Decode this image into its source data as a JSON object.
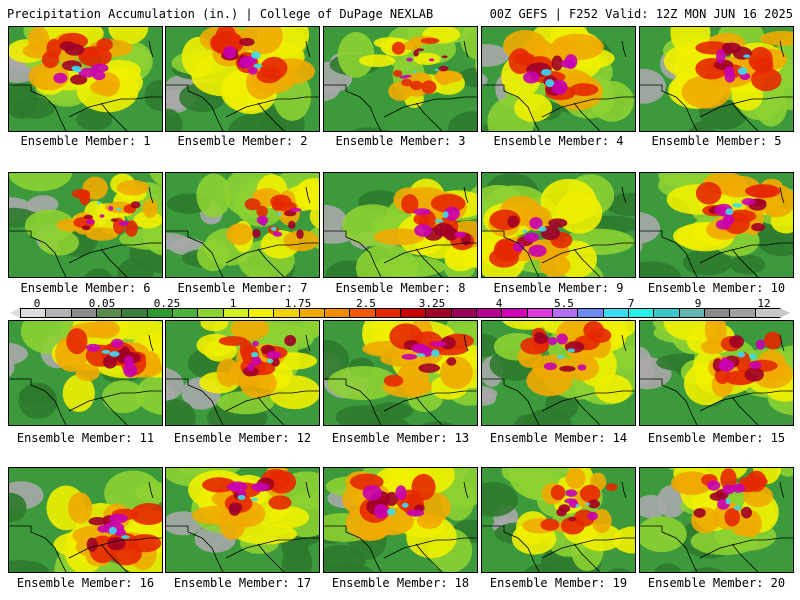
{
  "header": {
    "left": "Precipitation Accumulation (in.) | College of DuPage NEXLAB",
    "right": "00Z GEFS | F252 Valid: 12Z MON JUN 16 2025"
  },
  "caption_prefix": "Ensemble Member:",
  "members": [
    {
      "n": "1",
      "intensity": 0.75,
      "center": "north-central"
    },
    {
      "n": "2",
      "intensity": 0.8,
      "center": "north"
    },
    {
      "n": "3",
      "intensity": 0.35,
      "center": "north-east"
    },
    {
      "n": "4",
      "intensity": 0.9,
      "center": "widespread"
    },
    {
      "n": "5",
      "intensity": 0.8,
      "center": "north-east"
    },
    {
      "n": "6",
      "intensity": 0.45,
      "center": "north-east"
    },
    {
      "n": "7",
      "intensity": 0.5,
      "center": "east"
    },
    {
      "n": "8",
      "intensity": 0.8,
      "center": "east"
    },
    {
      "n": "9",
      "intensity": 0.75,
      "center": "south-central"
    },
    {
      "n": "10",
      "intensity": 0.75,
      "center": "north-east"
    },
    {
      "n": "11",
      "intensity": 0.8,
      "center": "north-east"
    },
    {
      "n": "12",
      "intensity": 0.6,
      "center": "north-east"
    },
    {
      "n": "13",
      "intensity": 0.8,
      "center": "north-east"
    },
    {
      "n": "14",
      "intensity": 0.7,
      "center": "north"
    },
    {
      "n": "15",
      "intensity": 0.75,
      "center": "north-east"
    },
    {
      "n": "16",
      "intensity": 0.85,
      "center": "south-east"
    },
    {
      "n": "17",
      "intensity": 0.8,
      "center": "north"
    },
    {
      "n": "18",
      "intensity": 0.85,
      "center": "north-central"
    },
    {
      "n": "19",
      "intensity": 0.5,
      "center": "north-east"
    },
    {
      "n": "20",
      "intensity": 0.7,
      "center": "north"
    }
  ],
  "colorbar": {
    "colors": [
      "#dcdcdc",
      "#b4b4b4",
      "#8c8c8c",
      "#5a8c50",
      "#3c7c3c",
      "#2e9a2e",
      "#4cb43c",
      "#8cd232",
      "#d2f01e",
      "#f0f000",
      "#f0d200",
      "#f0aa00",
      "#f08c00",
      "#f05a00",
      "#e62800",
      "#c80000",
      "#a00028",
      "#96005a",
      "#b4008c",
      "#d200b4",
      "#dc3cdc",
      "#b46ef0",
      "#6e8cf0",
      "#3cdcf0",
      "#28f0e6",
      "#3cc8c8",
      "#64b4b4",
      "#8c8c8c",
      "#a0a0a0",
      "#c8c8c8"
    ],
    "labels": [
      "0",
      "0.05",
      "0.25",
      "1",
      "1.75",
      "2.5",
      "3.25",
      "4",
      "5.5",
      "7",
      "9",
      "12"
    ]
  }
}
